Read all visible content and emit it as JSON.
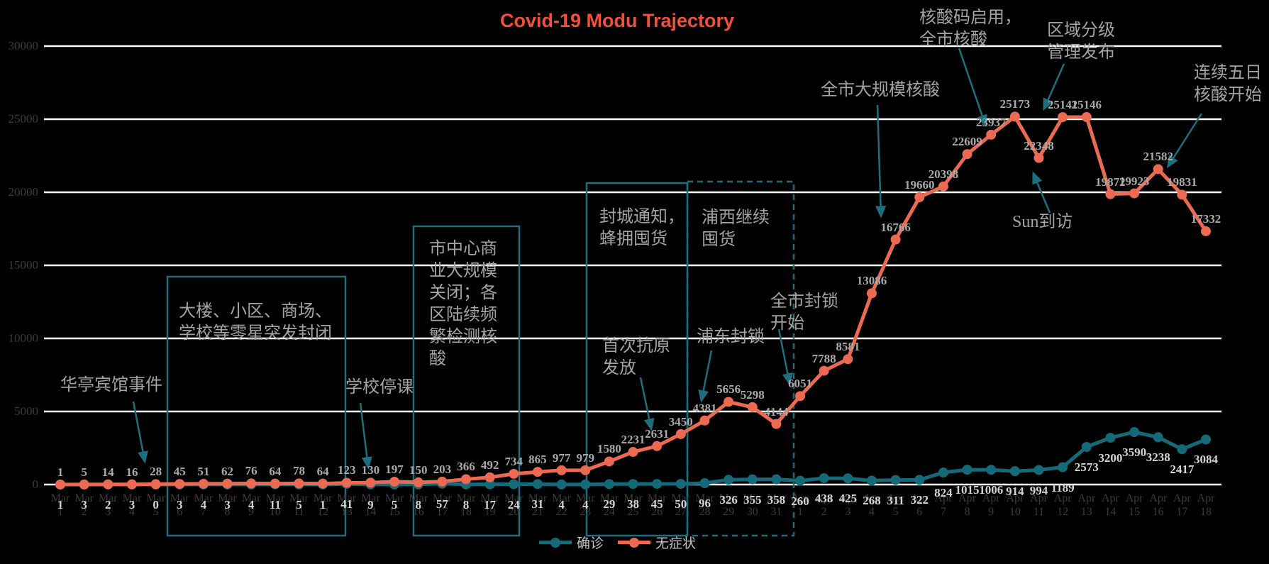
{
  "title": "Covid-19 Modu Trajectory",
  "title_color": "#f05138",
  "colors": {
    "confirmed": "#156a7a",
    "asymptomatic": "#ec6a52",
    "grid": "#ffffff",
    "axis_label": "#3b3b3b",
    "value_label_asymptomatic": "#a9a9a9",
    "value_label_confirmed": "#d4d4d4",
    "annotation": "#a3a3a3",
    "arrow_box": "#1e6f7e",
    "background": "#000000"
  },
  "legend": {
    "items": [
      {
        "label": "确诊",
        "color": "#156a7a"
      },
      {
        "label": "无症状",
        "color": "#ec6a52"
      }
    ]
  },
  "chart_data": {
    "type": "line",
    "title": "Covid-19 Modu Trajectory",
    "xlabel": "",
    "ylabel": "",
    "ylim": [
      0,
      30000
    ],
    "yticks": [
      0,
      5000,
      10000,
      15000,
      20000,
      25000,
      30000
    ],
    "grid": true,
    "legend_position": "bottom",
    "x": [
      "Mar 1",
      "Mar 2",
      "Mar 3",
      "Mar 4",
      "Mar 5",
      "Mar 6",
      "Mar 7",
      "Mar 8",
      "Mar 9",
      "Mar 10",
      "Mar 11",
      "Mar 12",
      "Mar 13",
      "Mar 14",
      "Mar 15",
      "Mar 16",
      "Mar 17",
      "Mar 18",
      "Mar 19",
      "Mar 20",
      "Mar 21",
      "Mar 22",
      "Mar 23",
      "Mar 24",
      "Mar 25",
      "Mar 26",
      "Mar 27",
      "Mar 28",
      "Mar 29",
      "Mar 30",
      "Mar 31",
      "Apr 1",
      "Apr 2",
      "Apr 3",
      "Apr 4",
      "Apr 5",
      "Apr 6",
      "Apr 7",
      "Apr 8",
      "Apr 9",
      "Apr 10",
      "Apr 11",
      "Apr 12",
      "Apr 13",
      "Apr 14",
      "Apr 15",
      "Apr 16",
      "Apr 17",
      "Apr 18"
    ],
    "series": [
      {
        "name": "确诊",
        "color": "#156a7a",
        "values": [
          1,
          3,
          2,
          3,
          0,
          3,
          4,
          3,
          4,
          11,
          5,
          1,
          41,
          9,
          5,
          8,
          57,
          8,
          17,
          24,
          31,
          4,
          4,
          29,
          38,
          45,
          50,
          96,
          326,
          355,
          358,
          260,
          438,
          425,
          268,
          311,
          322,
          824,
          1015,
          1006,
          914,
          994,
          1189,
          2573,
          3200,
          3590,
          3238,
          2417,
          3084
        ]
      },
      {
        "name": "无症状",
        "color": "#ec6a52",
        "values": [
          1,
          5,
          14,
          16,
          28,
          45,
          51,
          62,
          76,
          64,
          78,
          64,
          123,
          130,
          197,
          150,
          203,
          366,
          492,
          734,
          865,
          977,
          979,
          1580,
          2231,
          2631,
          3450,
          4381,
          5656,
          5298,
          4144,
          6051,
          7788,
          8581,
          13086,
          16766,
          19660,
          20398,
          22609,
          23937,
          25173,
          22348,
          25141,
          25146,
          19872,
          19923,
          21582,
          19831,
          17332
        ]
      }
    ]
  },
  "annotations": [
    {
      "id": "huating-hotel",
      "text": "华亭宾馆事件"
    },
    {
      "id": "sporadic-closures",
      "text": "大楼、小区、商场、\n学校等零星突发封闭"
    },
    {
      "id": "schools-closed",
      "text": "学校停课"
    },
    {
      "id": "downtown-closure",
      "text": "市中心商\n业大规模\n关闭；各\n区陆续频\n繁检测核\n酸"
    },
    {
      "id": "lockdown-notice",
      "text": "封城通知，\n蜂拥囤货"
    },
    {
      "id": "puxi-stockpile",
      "text": "浦西继续\n囤货"
    },
    {
      "id": "first-antigen",
      "text": "首次抗原\n发放"
    },
    {
      "id": "pudong-lockdown",
      "text": "浦东封锁"
    },
    {
      "id": "citywide-lockdown",
      "text": "全市封锁\n开始"
    },
    {
      "id": "citywide-mass-test",
      "text": "全市大规模核酸"
    },
    {
      "id": "nat-code-enabled",
      "text": "核酸码启用，\n全市核酸"
    },
    {
      "id": "tiered-management",
      "text": "区域分级\n管理发布"
    },
    {
      "id": "sun-visit",
      "text": "Sun到访"
    },
    {
      "id": "five-day-testing",
      "text": "连续五日\n核酸开始"
    }
  ]
}
